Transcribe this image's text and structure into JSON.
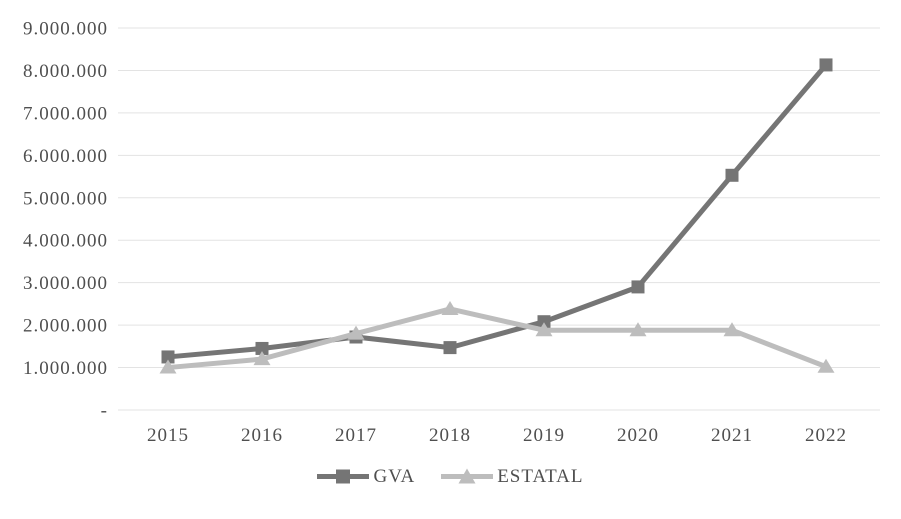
{
  "chart_data": {
    "type": "line",
    "title": "",
    "xlabel": "",
    "ylabel": "",
    "categories": [
      "2015",
      "2016",
      "2017",
      "2018",
      "2019",
      "2020",
      "2021",
      "2022"
    ],
    "series": [
      {
        "name": "GVA",
        "marker": "square",
        "color": "#757575",
        "values": [
          1250000,
          1450000,
          1720000,
          1470000,
          2080000,
          2900000,
          5530000,
          8130000
        ]
      },
      {
        "name": "ESTATAL",
        "marker": "triangle",
        "color": "#bdbdbd",
        "values": [
          1000000,
          1200000,
          1800000,
          2380000,
          1880000,
          1880000,
          1880000,
          1020000
        ]
      }
    ],
    "ylim": [
      0,
      9000000
    ],
    "ytick_step": 1000000,
    "ytick_labels": [
      "-",
      "1.000.000",
      "2.000.000",
      "3.000.000",
      "4.000.000",
      "5.000.000",
      "6.000.000",
      "7.000.000",
      "8.000.000",
      "9.000.000"
    ],
    "grid": "horizontal",
    "gridline_color": "#e3e3e3",
    "axis_text_color": "#4f4f4f",
    "legend_position": "bottom"
  }
}
